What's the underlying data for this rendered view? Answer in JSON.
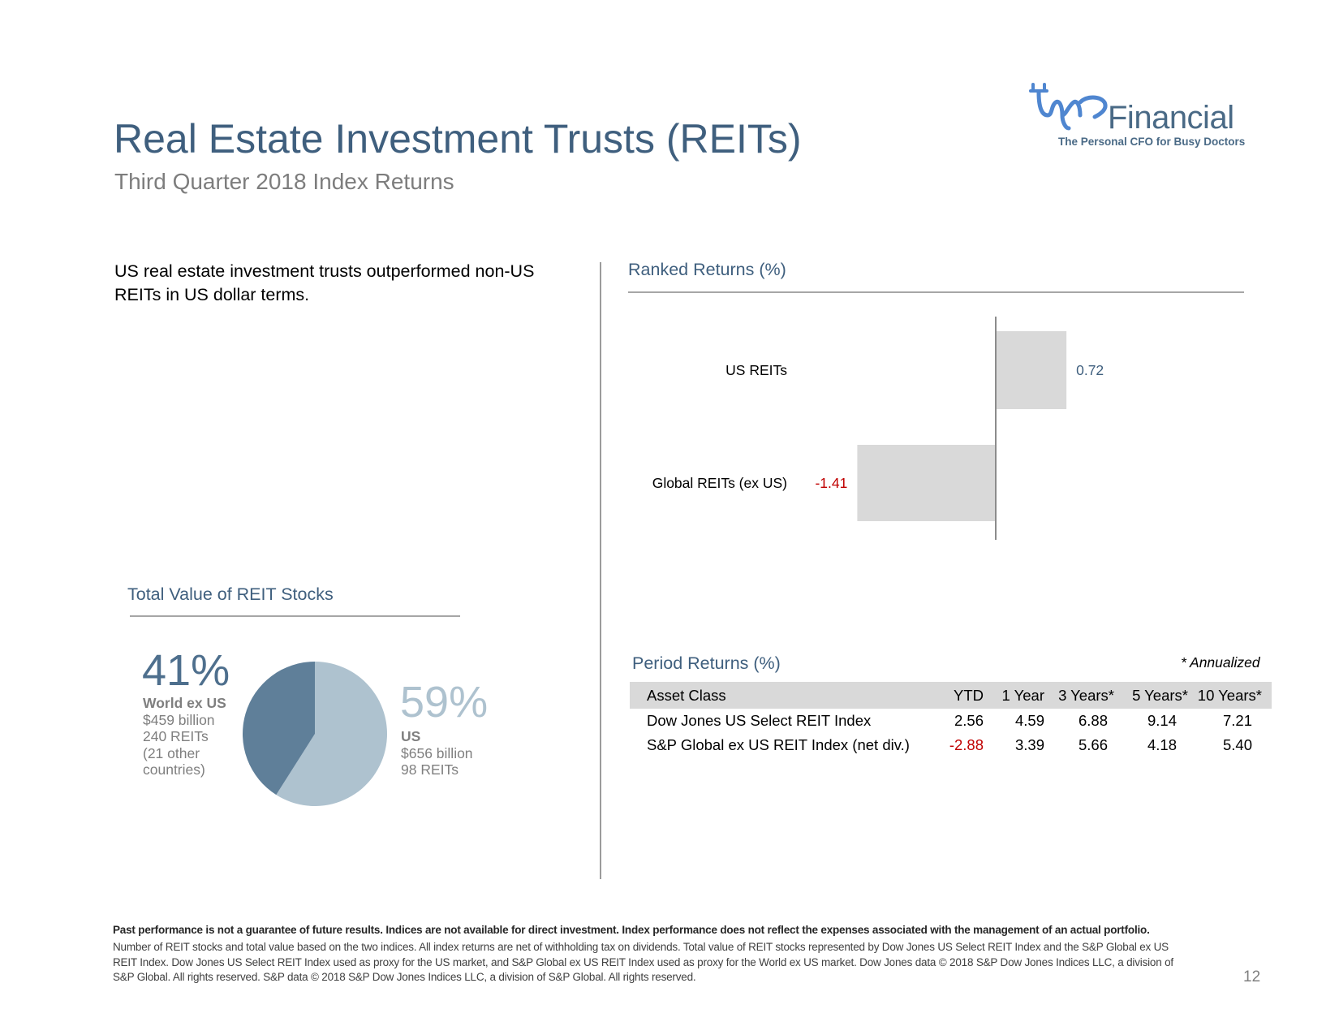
{
  "header": {
    "title": "Real Estate Investment Trusts (REITs)",
    "subtitle": "Third Quarter 2018 Index Returns"
  },
  "logo": {
    "wordmark": "Financial",
    "tagline": "The Personal CFO for Busy Doctors",
    "colors": {
      "brand": "#4a6a86",
      "mark": "#5b8ed6"
    }
  },
  "intro_text": "US real estate investment trusts outperformed non-US REITs in US dollar terms.",
  "ranked": {
    "title": "Ranked Returns (%)"
  },
  "total_value": {
    "title": "Total Value of REIT Stocks",
    "left": {
      "pct": "41%",
      "label": "World ex US",
      "value": "$459 billion",
      "count": "240 REITs",
      "note": "(21 other countries)"
    },
    "right": {
      "pct": "59%",
      "label": "US",
      "value": "$656 billion",
      "count": "98 REITs"
    }
  },
  "period": {
    "title": "Period Returns (%)",
    "note": "* Annualized",
    "headers": [
      "Asset Class",
      "YTD",
      "1 Year",
      "3 Years*",
      "5 Years*",
      "10 Years*"
    ],
    "rows": [
      {
        "name": "Dow Jones US Select REIT Index",
        "values": [
          "2.56",
          "4.59",
          "6.88",
          "9.14",
          "7.21"
        ]
      },
      {
        "name": "S&P Global ex US REIT Index (net div.)",
        "values": [
          "-2.88",
          "3.39",
          "5.66",
          "4.18",
          "5.40"
        ]
      }
    ]
  },
  "footer": {
    "bold": "Past performance is not a guarantee of future results. Indices are not available for direct investment. Index performance does not reflect the expenses associated with the management of an actual portfolio.",
    "text": "Number of REIT stocks and total value based on the two indices. All index returns are net of withholding tax on dividends. Total value of REIT stocks represented by Dow Jones US Select REIT Index and the S&P Global ex US REIT Index. Dow Jones US Select REIT Index used as proxy for the US market, and S&P Global ex US REIT Index used as proxy for the World ex US market. Dow Jones data © 2018 S&P Dow Jones Indices LLC, a division of S&P Global. All rights reserved. S&P data © 2018 S&P Dow Jones Indices LLC, a division of S&P Global. All rights reserved.",
    "page_number": "12"
  },
  "colors": {
    "title": "#3f5f7e",
    "bar": "#d9d9d9",
    "positive_label": "#3f5f7e",
    "negative": "#c00000",
    "pie_world": "#5f7f99",
    "pie_us": "#aec2cf"
  },
  "chart_data": [
    {
      "type": "bar",
      "orientation": "horizontal",
      "title": "Ranked Returns (%)",
      "categories": [
        "US REITs",
        "Global REITs (ex US)"
      ],
      "values": [
        0.72,
        -1.41
      ],
      "value_labels": [
        "0.72",
        "-1.41"
      ]
    },
    {
      "type": "pie",
      "title": "Total Value of REIT Stocks",
      "labels": [
        "World ex US",
        "US"
      ],
      "values": [
        41,
        59
      ]
    },
    {
      "type": "table",
      "title": "Period Returns (%)",
      "columns": [
        "Asset Class",
        "YTD",
        "1 Year",
        "3 Years*",
        "5 Years*",
        "10 Years*"
      ],
      "rows": [
        [
          "Dow Jones US Select REIT Index",
          2.56,
          4.59,
          6.88,
          9.14,
          7.21
        ],
        [
          "S&P Global ex US REIT Index (net div.)",
          -2.88,
          3.39,
          5.66,
          4.18,
          5.4
        ]
      ]
    }
  ]
}
